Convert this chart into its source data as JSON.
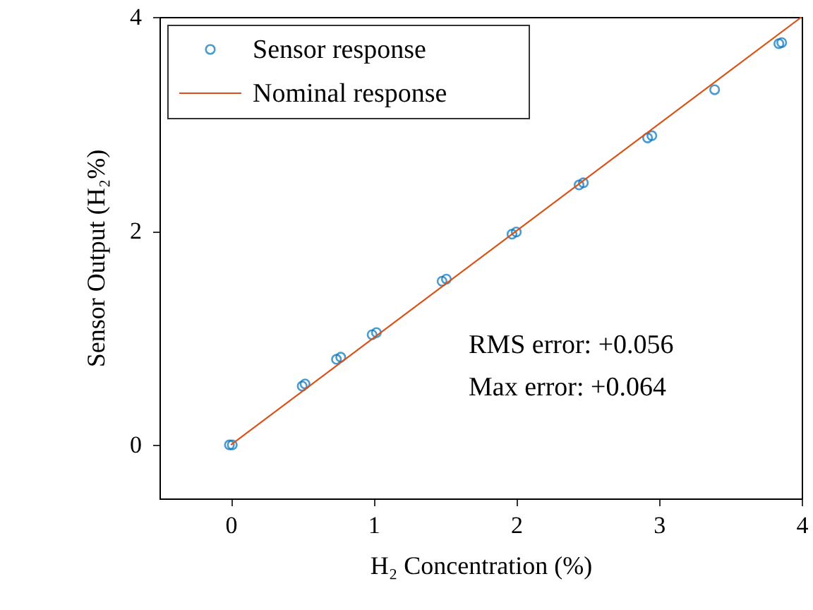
{
  "chart_data": {
    "type": "scatter",
    "xlabel": "H₂ Concentration (%)",
    "ylabel": "Sensor Output (H₂%)",
    "xlim": [
      -0.5,
      4
    ],
    "ylim": [
      -0.5,
      4
    ],
    "xticks": [
      0,
      1,
      2,
      3,
      4
    ],
    "yticks": [
      0,
      2,
      4
    ],
    "grid": false,
    "legend": "top left",
    "series": [
      {
        "name": "Sensor response",
        "marker": "circle",
        "color": "#0072bd",
        "x": [
          -0.01,
          0.01,
          0.5,
          0.52,
          0.74,
          0.77,
          0.99,
          1.02,
          1.48,
          1.51,
          1.97,
          2.0,
          2.44,
          2.47,
          2.92,
          2.95,
          3.39,
          3.84,
          3.86
        ],
        "values": [
          0.0,
          0.0,
          0.55,
          0.57,
          0.8,
          0.82,
          1.03,
          1.05,
          1.53,
          1.55,
          1.97,
          1.99,
          2.43,
          2.45,
          2.87,
          2.89,
          3.32,
          3.75,
          3.76
        ]
      },
      {
        "name": "Nominal response",
        "type": "line",
        "line_style": "solid",
        "color": "#d95319",
        "x": [
          0,
          4
        ],
        "values": [
          0,
          4
        ]
      }
    ],
    "annotations": [
      "RMS error: +0.056",
      "Max error: +0.064"
    ]
  }
}
